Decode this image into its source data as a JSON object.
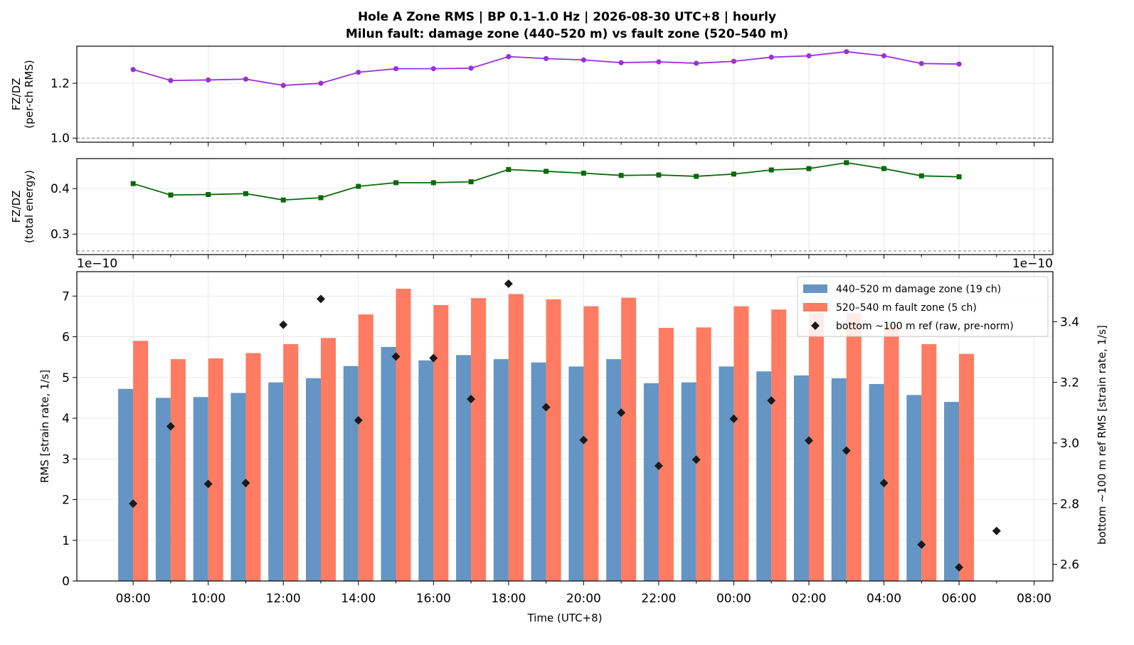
{
  "title_line1": "Hole A Zone RMS  |  BP 0.1–1.0 Hz  |  2026-08-30 UTC+8  |  hourly",
  "title_line2": "Milun fault: damage zone (440–520 m) vs fault zone (520–540 m)",
  "colors": {
    "ratio_rms": "#9b30d9",
    "ratio_energy": "#0a6a0a",
    "damage": "#6495c4",
    "fault": "#ff7b61",
    "ref": "#1a1a1a",
    "refline": "#808080",
    "grid": "#e4e4e4"
  },
  "chart_data": [
    {
      "type": "line",
      "ylabel": [
        "FZ/DZ",
        "(per-ch RMS)"
      ],
      "ylim": [
        0.985,
        1.335
      ],
      "yticks": [
        "1.0",
        "1.2"
      ],
      "reference_y": 1.0,
      "grid": true,
      "x": [
        "08:00",
        "09:00",
        "10:00",
        "11:00",
        "12:00",
        "13:00",
        "14:00",
        "15:00",
        "16:00",
        "17:00",
        "18:00",
        "19:00",
        "20:00",
        "21:00",
        "22:00",
        "23:00",
        "00:00",
        "01:00",
        "02:00",
        "03:00",
        "04:00",
        "05:00",
        "06:00"
      ],
      "values": [
        1.25,
        1.21,
        1.212,
        1.215,
        1.192,
        1.2,
        1.24,
        1.253,
        1.253,
        1.255,
        1.297,
        1.29,
        1.285,
        1.275,
        1.278,
        1.273,
        1.28,
        1.295,
        1.3,
        1.315,
        1.3,
        1.272,
        1.27
      ]
    },
    {
      "type": "line",
      "ylabel": [
        "FZ/DZ",
        "(total energy)"
      ],
      "ylim": [
        0.255,
        0.466
      ],
      "yticks": [
        "0.3",
        "0.4"
      ],
      "reference_y": 0.263,
      "grid": true,
      "x": [
        "08:00",
        "09:00",
        "10:00",
        "11:00",
        "12:00",
        "13:00",
        "14:00",
        "15:00",
        "16:00",
        "17:00",
        "18:00",
        "19:00",
        "20:00",
        "21:00",
        "22:00",
        "23:00",
        "00:00",
        "01:00",
        "02:00",
        "03:00",
        "04:00",
        "05:00",
        "06:00"
      ],
      "values": [
        0.411,
        0.386,
        0.387,
        0.389,
        0.375,
        0.38,
        0.405,
        0.413,
        0.413,
        0.415,
        0.442,
        0.438,
        0.434,
        0.429,
        0.43,
        0.427,
        0.432,
        0.441,
        0.444,
        0.457,
        0.444,
        0.428,
        0.426
      ]
    },
    {
      "type": "bar",
      "xlabel": "Time (UTC+8)",
      "ylabel": "RMS  [strain rate, 1/s]",
      "y2label": "bottom ~100 m ref RMS  [strain rate, 1/s]",
      "offset_left": "1e−10",
      "offset_right": "1e−10",
      "ylim": [
        0,
        7.6
      ],
      "yticks": [
        "0",
        "1",
        "2",
        "3",
        "4",
        "5",
        "6",
        "7"
      ],
      "y2lim": [
        2.545,
        3.565
      ],
      "y2ticks": [
        "2.6",
        "2.8",
        "3.0",
        "3.2",
        "3.4"
      ],
      "x_tick_labels": [
        "08:00",
        "10:00",
        "12:00",
        "14:00",
        "16:00",
        "18:00",
        "20:00",
        "22:00",
        "00:00",
        "02:00",
        "04:00",
        "06:00",
        "08:00"
      ],
      "grid": true,
      "legend_position": "top-right",
      "categories": [
        "08:00",
        "09:00",
        "10:00",
        "11:00",
        "12:00",
        "13:00",
        "14:00",
        "15:00",
        "16:00",
        "17:00",
        "18:00",
        "19:00",
        "20:00",
        "21:00",
        "22:00",
        "23:00",
        "00:00",
        "01:00",
        "02:00",
        "03:00",
        "04:00",
        "05:00",
        "06:00"
      ],
      "series": [
        {
          "name": "440–520 m  damage zone (19 ch)",
          "values": [
            4.72,
            4.5,
            4.52,
            4.62,
            4.88,
            4.98,
            5.28,
            5.75,
            5.42,
            5.55,
            5.45,
            5.37,
            5.27,
            5.45,
            4.86,
            4.88,
            5.27,
            5.15,
            5.05,
            4.98,
            4.84,
            4.57,
            4.4
          ]
        },
        {
          "name": "520–540 m  fault zone (5 ch)",
          "values": [
            5.9,
            5.45,
            5.47,
            5.6,
            5.82,
            5.97,
            6.55,
            7.18,
            6.78,
            6.95,
            7.05,
            6.92,
            6.75,
            6.96,
            6.22,
            6.23,
            6.75,
            6.67,
            6.58,
            6.58,
            6.3,
            5.82,
            5.58
          ]
        }
      ],
      "ref_series": {
        "name": "bottom ~100 m ref (raw, pre-norm)",
        "x": [
          "08:00",
          "09:00",
          "10:00",
          "11:00",
          "12:00",
          "13:00",
          "14:00",
          "15:00",
          "16:00",
          "17:00",
          "18:00",
          "19:00",
          "20:00",
          "21:00",
          "22:00",
          "23:00",
          "00:00",
          "01:00",
          "02:00",
          "03:00",
          "04:00",
          "05:00",
          "06:00",
          "07:00"
        ],
        "values": [
          2.8,
          3.055,
          2.865,
          2.868,
          3.39,
          3.475,
          3.075,
          3.285,
          3.28,
          3.145,
          3.525,
          3.118,
          3.01,
          3.1,
          2.925,
          2.945,
          3.08,
          3.14,
          3.008,
          2.975,
          2.868,
          2.665,
          2.59,
          2.71
        ]
      }
    }
  ]
}
